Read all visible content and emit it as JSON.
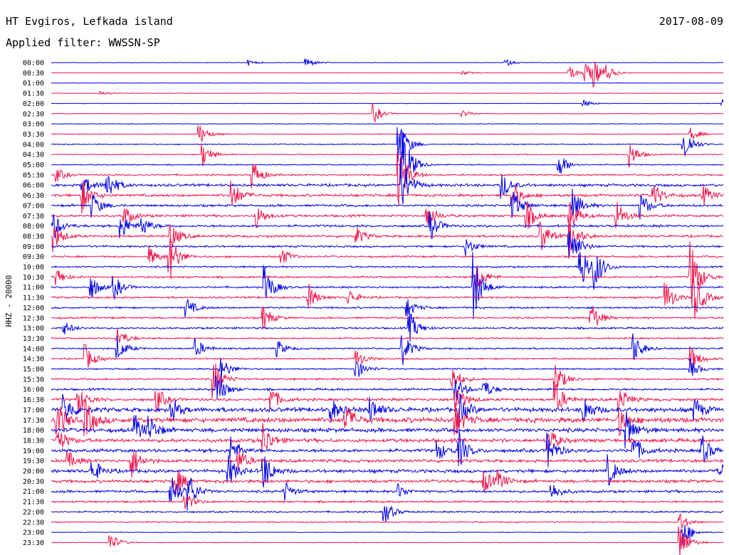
{
  "header": {
    "station": "HT Evgiros, Lefkada island",
    "filter": "Applied filter: WWSSN-SP",
    "date": "2017-08-09"
  },
  "chart_data": {
    "type": "line",
    "title": "HT Evgiros, Lefkada island",
    "subtitle": "Applied filter: WWSSN-SP",
    "ylabel": "HHZ - 20000",
    "colors": [
      "#0000e6",
      "#f0144b"
    ],
    "rows": [
      "00:00",
      "00:30",
      "01:00",
      "01:30",
      "02:00",
      "02:30",
      "03:00",
      "03:30",
      "04:00",
      "04:30",
      "05:00",
      "05:30",
      "06:00",
      "06:30",
      "07:00",
      "07:30",
      "08:00",
      "08:30",
      "09:00",
      "09:30",
      "10:00",
      "10:30",
      "11:00",
      "11:30",
      "12:00",
      "12:30",
      "13:00",
      "13:30",
      "14:00",
      "14:30",
      "15:00",
      "15:30",
      "16:00",
      "16:30",
      "17:00",
      "17:30",
      "18:00",
      "18:30",
      "19:00",
      "19:30",
      "20:00",
      "20:30",
      "21:00",
      "21:30",
      "22:00",
      "22:30",
      "23:00",
      "23:30"
    ],
    "row_noise": [
      0.3,
      0.3,
      0.3,
      0.3,
      0.3,
      0.3,
      0.4,
      0.5,
      0.6,
      0.6,
      0.7,
      0.9,
      1.6,
      1.6,
      1.4,
      1.4,
      1.4,
      1.4,
      1.2,
      1.1,
      1.0,
      1.1,
      1.1,
      1.1,
      1.1,
      1.1,
      1.1,
      1.0,
      1.0,
      0.9,
      0.9,
      1.1,
      1.3,
      1.6,
      2.6,
      3.0,
      2.4,
      2.2,
      2.0,
      1.8,
      2.0,
      1.8,
      1.5,
      1.2,
      1.0,
      0.7,
      0.4,
      0.4
    ],
    "events": [
      [
        0,
        350,
        4
      ],
      [
        0,
        430,
        8
      ],
      [
        0,
        710,
        5
      ],
      [
        1,
        800,
        9
      ],
      [
        1,
        822,
        18
      ],
      [
        1,
        835,
        14
      ],
      [
        1,
        850,
        10
      ],
      [
        1,
        650,
        3
      ],
      [
        3,
        140,
        4
      ],
      [
        4,
        820,
        5
      ],
      [
        4,
        1015,
        7
      ],
      [
        5,
        525,
        14
      ],
      [
        5,
        650,
        5
      ],
      [
        7,
        280,
        15
      ],
      [
        7,
        970,
        10
      ],
      [
        8,
        560,
        40
      ],
      [
        8,
        962,
        16
      ],
      [
        8,
        960,
        10
      ],
      [
        9,
        285,
        18
      ],
      [
        9,
        885,
        18
      ],
      [
        10,
        565,
        60
      ],
      [
        10,
        785,
        18
      ],
      [
        11,
        80,
        10
      ],
      [
        11,
        355,
        22
      ],
      [
        11,
        560,
        50
      ],
      [
        12,
        115,
        20
      ],
      [
        12,
        150,
        25
      ],
      [
        12,
        565,
        40
      ],
      [
        12,
        705,
        20
      ],
      [
        13,
        115,
        25
      ],
      [
        13,
        325,
        25
      ],
      [
        13,
        720,
        20
      ],
      [
        13,
        918,
        18
      ],
      [
        13,
        988,
        14
      ],
      [
        14,
        130,
        18
      ],
      [
        14,
        720,
        25
      ],
      [
        14,
        805,
        25
      ],
      [
        14,
        900,
        20
      ],
      [
        15,
        175,
        14
      ],
      [
        15,
        360,
        18
      ],
      [
        15,
        600,
        20
      ],
      [
        15,
        740,
        22
      ],
      [
        15,
        800,
        25
      ],
      [
        15,
        865,
        25
      ],
      [
        16,
        75,
        20
      ],
      [
        16,
        170,
        20
      ],
      [
        16,
        200,
        14
      ],
      [
        16,
        605,
        20
      ],
      [
        17,
        75,
        22
      ],
      [
        17,
        240,
        20
      ],
      [
        17,
        500,
        14
      ],
      [
        17,
        760,
        25
      ],
      [
        17,
        800,
        30
      ],
      [
        18,
        655,
        14
      ],
      [
        18,
        800,
        40
      ],
      [
        19,
        210,
        14
      ],
      [
        19,
        237,
        40
      ],
      [
        19,
        395,
        14
      ],
      [
        20,
        815,
        40
      ],
      [
        20,
        835,
        30
      ],
      [
        21,
        80,
        12
      ],
      [
        21,
        668,
        25
      ],
      [
        21,
        970,
        55
      ],
      [
        22,
        127,
        20
      ],
      [
        22,
        160,
        18
      ],
      [
        22,
        372,
        30
      ],
      [
        22,
        665,
        50
      ],
      [
        23,
        432,
        22
      ],
      [
        23,
        490,
        12
      ],
      [
        23,
        935,
        25
      ],
      [
        23,
        975,
        40
      ],
      [
        24,
        262,
        14
      ],
      [
        24,
        572,
        14
      ],
      [
        25,
        370,
        18
      ],
      [
        25,
        830,
        25
      ],
      [
        26,
        90,
        10
      ],
      [
        26,
        575,
        25
      ],
      [
        27,
        165,
        16
      ],
      [
        28,
        165,
        18
      ],
      [
        28,
        275,
        14
      ],
      [
        28,
        390,
        12
      ],
      [
        28,
        565,
        25
      ],
      [
        28,
        890,
        22
      ],
      [
        29,
        120,
        20
      ],
      [
        29,
        500,
        14
      ],
      [
        29,
        970,
        20
      ],
      [
        30,
        310,
        20
      ],
      [
        30,
        500,
        16
      ],
      [
        30,
        970,
        14
      ],
      [
        31,
        300,
        30
      ],
      [
        31,
        635,
        20
      ],
      [
        31,
        780,
        25
      ],
      [
        32,
        305,
        25
      ],
      [
        32,
        640,
        20
      ],
      [
        32,
        680,
        14
      ],
      [
        33,
        110,
        20
      ],
      [
        33,
        220,
        18
      ],
      [
        33,
        380,
        20
      ],
      [
        33,
        640,
        25
      ],
      [
        33,
        780,
        25
      ],
      [
        33,
        870,
        20
      ],
      [
        34,
        90,
        25
      ],
      [
        34,
        240,
        20
      ],
      [
        34,
        465,
        18
      ],
      [
        34,
        520,
        20
      ],
      [
        34,
        645,
        25
      ],
      [
        34,
        820,
        22
      ],
      [
        34,
        975,
        18
      ],
      [
        35,
        80,
        28
      ],
      [
        35,
        120,
        30
      ],
      [
        35,
        485,
        25
      ],
      [
        35,
        640,
        25
      ],
      [
        35,
        870,
        20
      ],
      [
        36,
        190,
        20
      ],
      [
        36,
        210,
        18
      ],
      [
        36,
        880,
        25
      ],
      [
        37,
        80,
        20
      ],
      [
        37,
        370,
        25
      ],
      [
        37,
        770,
        20
      ],
      [
        38,
        325,
        20
      ],
      [
        38,
        615,
        14
      ],
      [
        38,
        645,
        25
      ],
      [
        38,
        770,
        25
      ],
      [
        38,
        890,
        22
      ],
      [
        38,
        985,
        25
      ],
      [
        39,
        95,
        14
      ],
      [
        39,
        185,
        25
      ],
      [
        39,
        335,
        18
      ],
      [
        40,
        130,
        18
      ],
      [
        40,
        320,
        25
      ],
      [
        40,
        370,
        30
      ],
      [
        40,
        855,
        22
      ],
      [
        40,
        1010,
        16
      ],
      [
        41,
        245,
        25
      ],
      [
        41,
        680,
        18
      ],
      [
        41,
        700,
        12
      ],
      [
        42,
        240,
        30
      ],
      [
        42,
        265,
        25
      ],
      [
        42,
        400,
        14
      ],
      [
        42,
        560,
        10
      ],
      [
        42,
        775,
        14
      ],
      [
        43,
        260,
        14
      ],
      [
        44,
        540,
        18
      ],
      [
        45,
        955,
        14
      ],
      [
        46,
        960,
        20
      ],
      [
        47,
        155,
        14
      ],
      [
        47,
        955,
        30
      ]
    ],
    "xlim": [
      0,
      30
    ],
    "grid": false
  }
}
